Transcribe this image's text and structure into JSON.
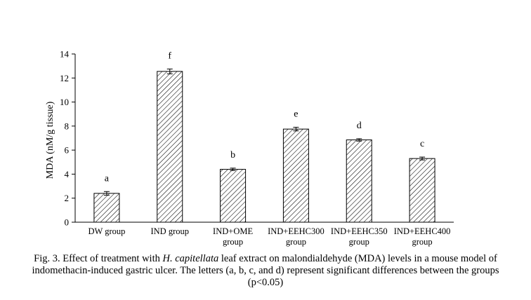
{
  "chart_data": {
    "type": "bar",
    "title": "",
    "xlabel": "",
    "ylabel": "MDA (nM/g tissue)",
    "ylim": [
      0,
      14
    ],
    "yticks": [
      0,
      2,
      4,
      6,
      8,
      10,
      12,
      14
    ],
    "grid": false,
    "legend": "none",
    "fill_pattern": "diagonal-hatch",
    "categories": [
      [
        "DW group"
      ],
      [
        "IND group"
      ],
      [
        "IND+OME",
        "group"
      ],
      [
        "IND+EEHC300",
        "group"
      ],
      [
        "IND+EEHC350",
        "group"
      ],
      [
        "IND+EEHC400",
        "group"
      ]
    ],
    "values": [
      2.4,
      12.55,
      4.4,
      7.75,
      6.85,
      5.3
    ],
    "errors": [
      0.15,
      0.2,
      0.1,
      0.15,
      0.1,
      0.12
    ],
    "letters": [
      "a",
      "f",
      "b",
      "e",
      "d",
      "c"
    ]
  },
  "caption": {
    "prefix": "Fig. 3. Effect of treatment with ",
    "species": "H. capitellata",
    "suffix": " leaf extract on malondialdehyde (MDA) levels in a mouse model of indomethacin-induced gastric ulcer. The letters (a, b, c, and d) represent significant differences between the groups (p<0.05)"
  },
  "colors": {
    "bar_fill": "#ffffff",
    "hatch": "#000000",
    "axis": "#000000"
  }
}
